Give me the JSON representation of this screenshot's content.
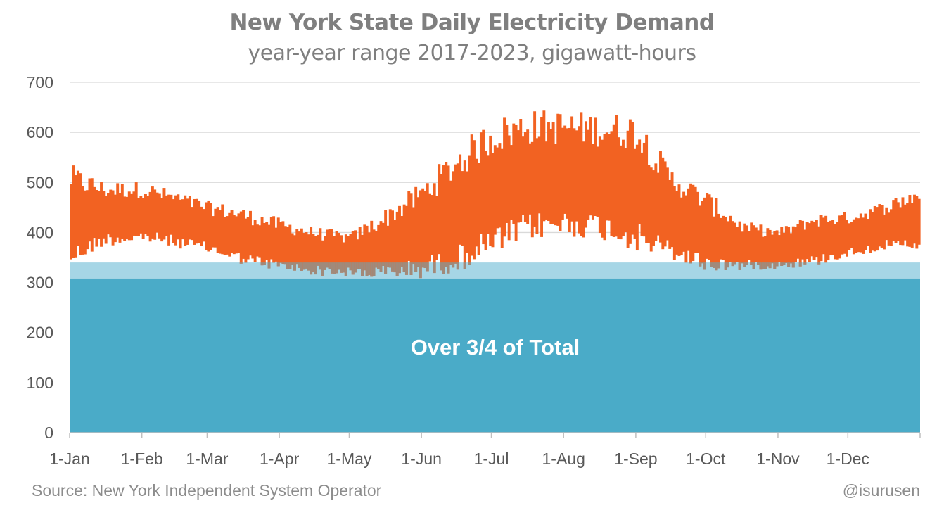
{
  "header": {
    "title": "New York State Daily Electricity Demand",
    "subtitle": "year-year range 2017-2023, gigawatt-hours"
  },
  "footer": {
    "source": "Source: New York Independent System Operator",
    "credit": "@isurusen"
  },
  "colors": {
    "range_bars": "#f26222",
    "overlap_bars": "#a08a7b",
    "base_band": "#4aabc8",
    "band_edge": "#a6d6e6",
    "gridline": "#d9d9d9",
    "axis_text": "#595959"
  },
  "chart_data": {
    "type": "area",
    "title": "New York State Daily Electricity Demand",
    "subtitle": "year-year range 2017-2023, gigawatt-hours",
    "xlabel": "",
    "ylabel": "",
    "ylim": [
      0,
      700
    ],
    "yticks": [
      0,
      100,
      200,
      300,
      400,
      500,
      600,
      700
    ],
    "xticks": [
      {
        "label": "1-Jan",
        "day": 1
      },
      {
        "label": "1-Feb",
        "day": 32
      },
      {
        "label": "1-Mar",
        "day": 60
      },
      {
        "label": "1-Apr",
        "day": 91
      },
      {
        "label": "1-May",
        "day": 121
      },
      {
        "label": "1-Jun",
        "day": 152
      },
      {
        "label": "1-Jul",
        "day": 182
      },
      {
        "label": "1-Aug",
        "day": 213
      },
      {
        "label": "1-Sep",
        "day": 244
      },
      {
        "label": "1-Oct",
        "day": 274
      },
      {
        "label": "1-Nov",
        "day": 305
      },
      {
        "label": "1-Dec",
        "day": 335
      }
    ],
    "xlim": [
      1,
      365
    ],
    "grid": true,
    "base_band": {
      "value": 308,
      "upper_edge": 340,
      "label": "Over 3/4 of Total"
    },
    "daily_range_profile": [
      {
        "day": 1,
        "low": 375,
        "high": 500
      },
      {
        "day": 15,
        "low": 400,
        "high": 480
      },
      {
        "day": 32,
        "low": 405,
        "high": 480
      },
      {
        "day": 45,
        "low": 395,
        "high": 465
      },
      {
        "day": 60,
        "low": 380,
        "high": 445
      },
      {
        "day": 75,
        "low": 360,
        "high": 430
      },
      {
        "day": 91,
        "low": 345,
        "high": 410
      },
      {
        "day": 105,
        "low": 335,
        "high": 395
      },
      {
        "day": 121,
        "low": 330,
        "high": 385
      },
      {
        "day": 135,
        "low": 335,
        "high": 420
      },
      {
        "day": 152,
        "low": 350,
        "high": 470
      },
      {
        "day": 167,
        "low": 375,
        "high": 530
      },
      {
        "day": 182,
        "low": 410,
        "high": 580
      },
      {
        "day": 197,
        "low": 440,
        "high": 600
      },
      {
        "day": 213,
        "low": 445,
        "high": 600
      },
      {
        "day": 228,
        "low": 440,
        "high": 595
      },
      {
        "day": 244,
        "low": 420,
        "high": 590
      },
      {
        "day": 258,
        "low": 385,
        "high": 500
      },
      {
        "day": 274,
        "low": 355,
        "high": 455
      },
      {
        "day": 290,
        "low": 345,
        "high": 405
      },
      {
        "day": 305,
        "low": 345,
        "high": 395
      },
      {
        "day": 320,
        "low": 355,
        "high": 420
      },
      {
        "day": 335,
        "low": 370,
        "high": 425
      },
      {
        "day": 350,
        "low": 385,
        "high": 445
      },
      {
        "day": 365,
        "low": 385,
        "high": 470
      }
    ],
    "series": [
      {
        "name": "",
        "style": "daily high-low range bars across years"
      }
    ]
  }
}
